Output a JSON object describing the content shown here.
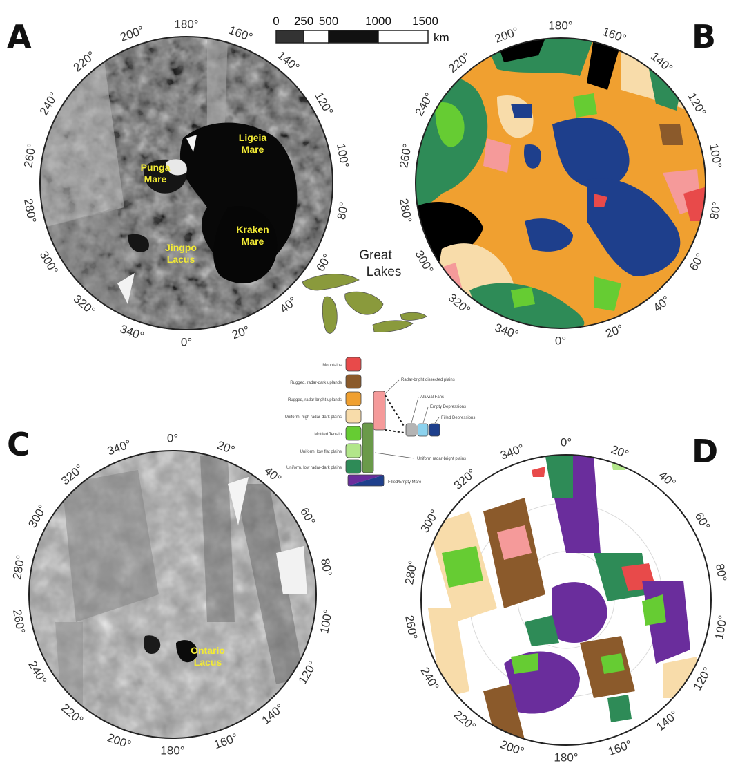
{
  "panels": {
    "A": {
      "letter": "A",
      "degree_labels": [
        "180°",
        "160°",
        "140°",
        "120°",
        "100°",
        "80°",
        "60°",
        "40°",
        "20°",
        "0°",
        "340°",
        "320°",
        "300°",
        "280°",
        "260°",
        "240°",
        "220°",
        "200°"
      ],
      "features": [
        {
          "lines": [
            "Ligeia",
            "Mare"
          ]
        },
        {
          "lines": [
            "Punga",
            "Mare"
          ]
        },
        {
          "lines": [
            "Kraken",
            "Mare"
          ]
        },
        {
          "lines": [
            "Jingpo",
            "Lacus"
          ]
        }
      ]
    },
    "B": {
      "letter": "B",
      "degree_labels": [
        "180°",
        "160°",
        "140°",
        "120°",
        "100°",
        "80°",
        "60°",
        "40°",
        "20°",
        "0°",
        "340°",
        "320°",
        "300°",
        "280°",
        "260°",
        "240°",
        "220°",
        "200°"
      ]
    },
    "C": {
      "letter": "C",
      "degree_labels": [
        "0°",
        "20°",
        "40°",
        "60°",
        "80°",
        "100°",
        "120°",
        "140°",
        "160°",
        "180°",
        "200°",
        "220°",
        "240°",
        "260°",
        "280°",
        "300°",
        "320°",
        "340°"
      ],
      "features": [
        {
          "lines": [
            "Ontario",
            "Lacus"
          ]
        }
      ]
    },
    "D": {
      "letter": "D",
      "degree_labels": [
        "0°",
        "20°",
        "40°",
        "60°",
        "80°",
        "100°",
        "120°",
        "140°",
        "160°",
        "180°",
        "200°",
        "220°",
        "240°",
        "260°",
        "280°",
        "300°",
        "320°",
        "340°"
      ]
    }
  },
  "scale_bar": {
    "ticks": [
      "0",
      "250",
      "500",
      "1000",
      "1500"
    ],
    "unit": "km"
  },
  "great_lakes": {
    "lines": [
      "Great",
      "Lakes"
    ],
    "color": "#8a9a3c"
  },
  "legend": {
    "units": [
      {
        "label": "Mountains",
        "color": "#e84a4a"
      },
      {
        "label": "Rugged, radar-dark uplands",
        "color": "#8b5a2b"
      },
      {
        "label": "Rugged, radar-bright uplands",
        "color": "#f0a030"
      },
      {
        "label": "Uniform, high radar-dark plains",
        "color": "#f8dcaa"
      },
      {
        "label": "Mottled Terrain",
        "color": "#66cc33"
      },
      {
        "label": "Uniform, low flat plains",
        "color": "#b2e68a"
      },
      {
        "label": "Uniform, low radar-dark plains",
        "color": "#2e8b57"
      }
    ],
    "uniform_bright": {
      "label": "Uniform radar-bright plains",
      "color": "#6a9a4a"
    },
    "dissected": {
      "label": "Radar-bright dissected plains",
      "color": "#f59a9a"
    },
    "depressions": [
      {
        "label": "Alluvial Fans",
        "color": "#b4b4b4"
      },
      {
        "label": "Empty Depressions",
        "color": "#8cd2ee"
      },
      {
        "label": "Filled Depressions",
        "color": "#1e3f8c"
      }
    ],
    "mare": {
      "label": "Filled/Empty Mare",
      "colors": [
        "#6a2d9c",
        "#1e3f8c"
      ]
    }
  }
}
